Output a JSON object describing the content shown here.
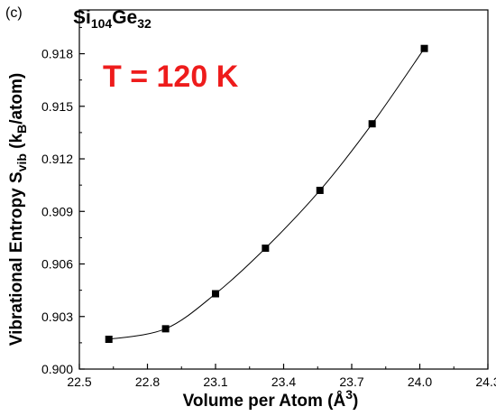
{
  "chart_data": {
    "type": "line",
    "panel_label": "(c)",
    "formula": {
      "parts": [
        {
          "text": "Si",
          "sub": false
        },
        {
          "text": "104",
          "sub": true
        },
        {
          "text": "Ge",
          "sub": false
        },
        {
          "text": "32",
          "sub": true
        }
      ]
    },
    "annotation": "T = 120 K",
    "annotation_color": "#ee1c1c",
    "xlabel": {
      "main": "Volume per Atom (",
      "unit": "Å",
      "sup": "3",
      "close": ")"
    },
    "ylabel": {
      "main": "Vibrational Entropy S",
      "sub": "vib",
      "mid": " (k",
      "sub2": "B",
      "close": "/atom)"
    },
    "xlim": [
      22.5,
      24.3
    ],
    "ylim": [
      0.9,
      0.9205
    ],
    "xticks": [
      22.5,
      22.8,
      23.1,
      23.4,
      23.7,
      24.0,
      24.3
    ],
    "xtick_labels": [
      "22.5",
      "22.8",
      "23.1",
      "23.4",
      "23.7",
      "24.0",
      "24.3"
    ],
    "yticks": [
      0.9,
      0.903,
      0.906,
      0.909,
      0.912,
      0.915,
      0.918
    ],
    "ytick_labels": [
      "0.900",
      "0.903",
      "0.906",
      "0.909",
      "0.912",
      "0.915",
      "0.918"
    ],
    "grid": false,
    "series": [
      {
        "marker": "square",
        "color": "#000000",
        "x": [
          22.63,
          22.88,
          23.1,
          23.32,
          23.56,
          23.79,
          24.02
        ],
        "y": [
          0.9017,
          0.9023,
          0.9043,
          0.9069,
          0.9102,
          0.914,
          0.9183
        ]
      }
    ]
  }
}
